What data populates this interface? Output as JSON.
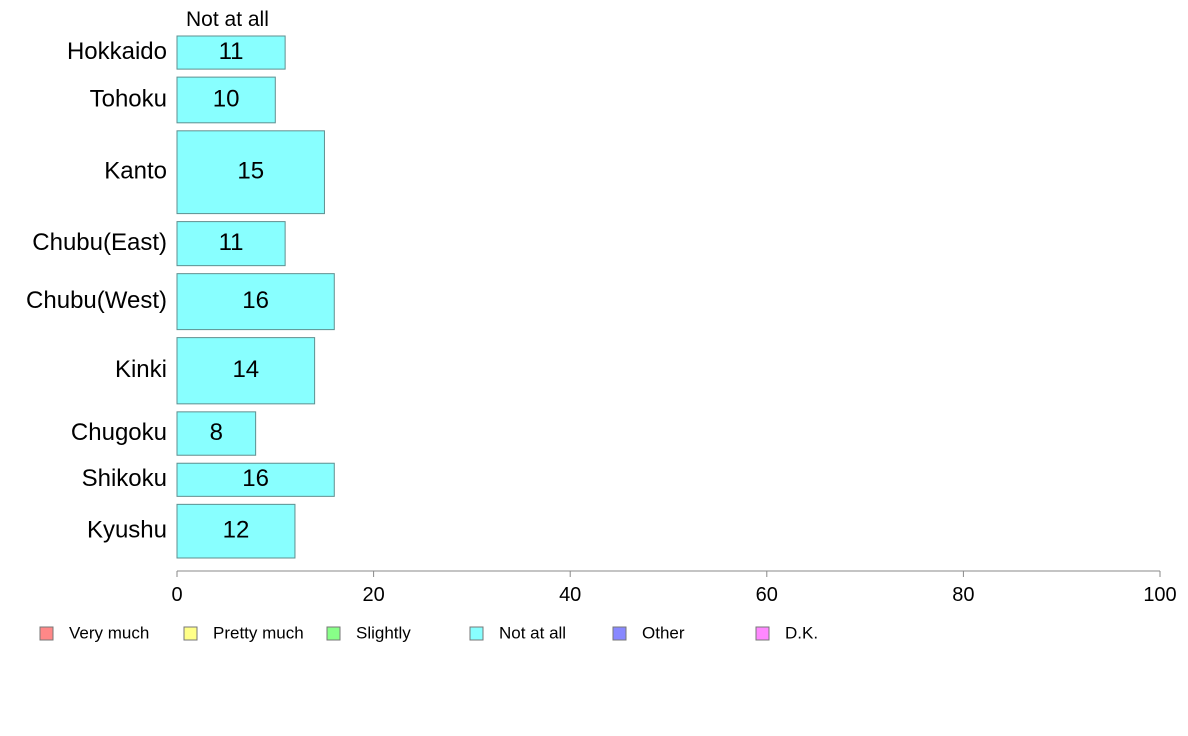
{
  "chart_data": {
    "type": "bar",
    "orientation": "horizontal",
    "title": "",
    "xlabel": "",
    "ylabel": "",
    "series_title": "Not at all",
    "categories": [
      "Hokkaido",
      "Tohoku",
      "Kanto",
      "Chubu(East)",
      "Chubu(West)",
      "Kinki",
      "Chugoku",
      "Shikoku",
      "Kyushu"
    ],
    "bar_thickness_relative": [
      1.0,
      1.38,
      2.5,
      1.33,
      1.69,
      2.0,
      1.31,
      1.0,
      1.62
    ],
    "series": [
      {
        "name": "Not at all",
        "values": [
          11,
          10,
          15,
          11,
          16,
          14,
          8,
          16,
          12
        ],
        "color": "#88FFFF"
      }
    ],
    "xlim": [
      0,
      100
    ],
    "xticks": [
      0,
      20,
      40,
      60,
      80,
      100
    ],
    "grid": false,
    "legend": {
      "position": "bottom",
      "items": [
        {
          "label": "Very much",
          "color": "#FF8888"
        },
        {
          "label": "Pretty much",
          "color": "#FFFF88"
        },
        {
          "label": "Slightly",
          "color": "#88FF88"
        },
        {
          "label": "Not at all",
          "color": "#88FFFF"
        },
        {
          "label": "Other",
          "color": "#8888FF"
        },
        {
          "label": "D.K.",
          "color": "#FF88FF"
        }
      ]
    }
  }
}
